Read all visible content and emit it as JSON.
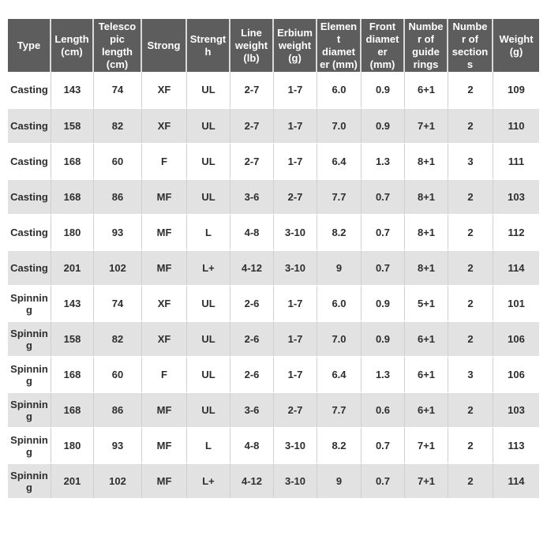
{
  "table": {
    "name": "fishing-rod-specifications",
    "columns": [
      {
        "key": "type",
        "label": "Type"
      },
      {
        "key": "length",
        "label": "Length (cm)"
      },
      {
        "key": "telescopic_length",
        "label": "Telescopic length (cm)"
      },
      {
        "key": "strong",
        "label": "Strong"
      },
      {
        "key": "strength",
        "label": "Strength"
      },
      {
        "key": "line_weight",
        "label": "Line weight (lb)"
      },
      {
        "key": "erbium_weight",
        "label": "Erbium weight (g)"
      },
      {
        "key": "element_diameter",
        "label": "Element diameter (mm)"
      },
      {
        "key": "front_diameter",
        "label": "Front diameter (mm)"
      },
      {
        "key": "guide_rings",
        "label": "Number of guide rings"
      },
      {
        "key": "sections",
        "label": "Number of sections"
      },
      {
        "key": "weight",
        "label": "Weight (g)"
      }
    ],
    "rows": [
      [
        "Casting",
        "143",
        "74",
        "XF",
        "UL",
        "2-7",
        "1-7",
        "6.0",
        "0.9",
        "6+1",
        "2",
        "109"
      ],
      [
        "Casting",
        "158",
        "82",
        "XF",
        "UL",
        "2-7",
        "1-7",
        "7.0",
        "0.9",
        "7+1",
        "2",
        "110"
      ],
      [
        "Casting",
        "168",
        "60",
        "F",
        "UL",
        "2-7",
        "1-7",
        "6.4",
        "1.3",
        "8+1",
        "3",
        "111"
      ],
      [
        "Casting",
        "168",
        "86",
        "MF",
        "UL",
        "3-6",
        "2-7",
        "7.7",
        "0.7",
        "8+1",
        "2",
        "103"
      ],
      [
        "Casting",
        "180",
        "93",
        "MF",
        "L",
        "4-8",
        "3-10",
        "8.2",
        "0.7",
        "8+1",
        "2",
        "112"
      ],
      [
        "Casting",
        "201",
        "102",
        "MF",
        "L+",
        "4-12",
        "3-10",
        "9",
        "0.7",
        "8+1",
        "2",
        "114"
      ],
      [
        "Spinning",
        "143",
        "74",
        "XF",
        "UL",
        "2-6",
        "1-7",
        "6.0",
        "0.9",
        "5+1",
        "2",
        "101"
      ],
      [
        "Spinning",
        "158",
        "82",
        "XF",
        "UL",
        "2-6",
        "1-7",
        "7.0",
        "0.9",
        "6+1",
        "2",
        "106"
      ],
      [
        "Spinning",
        "168",
        "60",
        "F",
        "UL",
        "2-6",
        "1-7",
        "6.4",
        "1.3",
        "6+1",
        "3",
        "106"
      ],
      [
        "Spinning",
        "168",
        "86",
        "MF",
        "UL",
        "3-6",
        "2-7",
        "7.7",
        "0.6",
        "6+1",
        "2",
        "103"
      ],
      [
        "Spinning",
        "180",
        "93",
        "MF",
        "L",
        "4-8",
        "3-10",
        "8.2",
        "0.7",
        "7+1",
        "2",
        "113"
      ],
      [
        "Spinning",
        "201",
        "102",
        "MF",
        "L+",
        "4-12",
        "3-10",
        "9",
        "0.7",
        "7+1",
        "2",
        "114"
      ]
    ]
  },
  "colors": {
    "header_bg": "#5d5d5d",
    "header_text": "#ffffff",
    "row_bg": "#ffffff",
    "row_alt_bg": "#e2e2e2",
    "body_text": "#2e2e2e",
    "grid_line": "#cfcfcf",
    "header_divider": "#d9d9d9"
  },
  "chart_data": {
    "type": "table",
    "title": "",
    "columns": [
      "Type",
      "Length (cm)",
      "Telescopic length (cm)",
      "Strong",
      "Strength",
      "Line weight (lb)",
      "Erbium weight (g)",
      "Element diameter (mm)",
      "Front diameter (mm)",
      "Number of guide rings",
      "Number of sections",
      "Weight (g)"
    ],
    "rows": [
      [
        "Casting",
        143,
        74,
        "XF",
        "UL",
        "2-7",
        "1-7",
        6.0,
        0.9,
        "6+1",
        2,
        109
      ],
      [
        "Casting",
        158,
        82,
        "XF",
        "UL",
        "2-7",
        "1-7",
        7.0,
        0.9,
        "7+1",
        2,
        110
      ],
      [
        "Casting",
        168,
        60,
        "F",
        "UL",
        "2-7",
        "1-7",
        6.4,
        1.3,
        "8+1",
        3,
        111
      ],
      [
        "Casting",
        168,
        86,
        "MF",
        "UL",
        "3-6",
        "2-7",
        7.7,
        0.7,
        "8+1",
        2,
        103
      ],
      [
        "Casting",
        180,
        93,
        "MF",
        "L",
        "4-8",
        "3-10",
        8.2,
        0.7,
        "8+1",
        2,
        112
      ],
      [
        "Casting",
        201,
        102,
        "MF",
        "L+",
        "4-12",
        "3-10",
        9,
        0.7,
        "8+1",
        2,
        114
      ],
      [
        "Spinning",
        143,
        74,
        "XF",
        "UL",
        "2-6",
        "1-7",
        6.0,
        0.9,
        "5+1",
        2,
        101
      ],
      [
        "Spinning",
        158,
        82,
        "XF",
        "UL",
        "2-6",
        "1-7",
        7.0,
        0.9,
        "6+1",
        2,
        106
      ],
      [
        "Spinning",
        168,
        60,
        "F",
        "UL",
        "2-6",
        "1-7",
        6.4,
        1.3,
        "6+1",
        3,
        106
      ],
      [
        "Spinning",
        168,
        86,
        "MF",
        "UL",
        "3-6",
        "2-7",
        7.7,
        0.6,
        "6+1",
        2,
        103
      ],
      [
        "Spinning",
        180,
        93,
        "MF",
        "L",
        "4-8",
        "3-10",
        8.2,
        0.7,
        "7+1",
        2,
        113
      ],
      [
        "Spinning",
        201,
        102,
        "MF",
        "L+",
        "4-12",
        "3-10",
        9,
        0.7,
        "7+1",
        2,
        114
      ]
    ],
    "layout_hints": {
      "header_style": "dark-gray bar, white bold text",
      "row_striping": "even rows shaded light gray",
      "grid": "light vertical cell dividers, white row separators"
    }
  }
}
